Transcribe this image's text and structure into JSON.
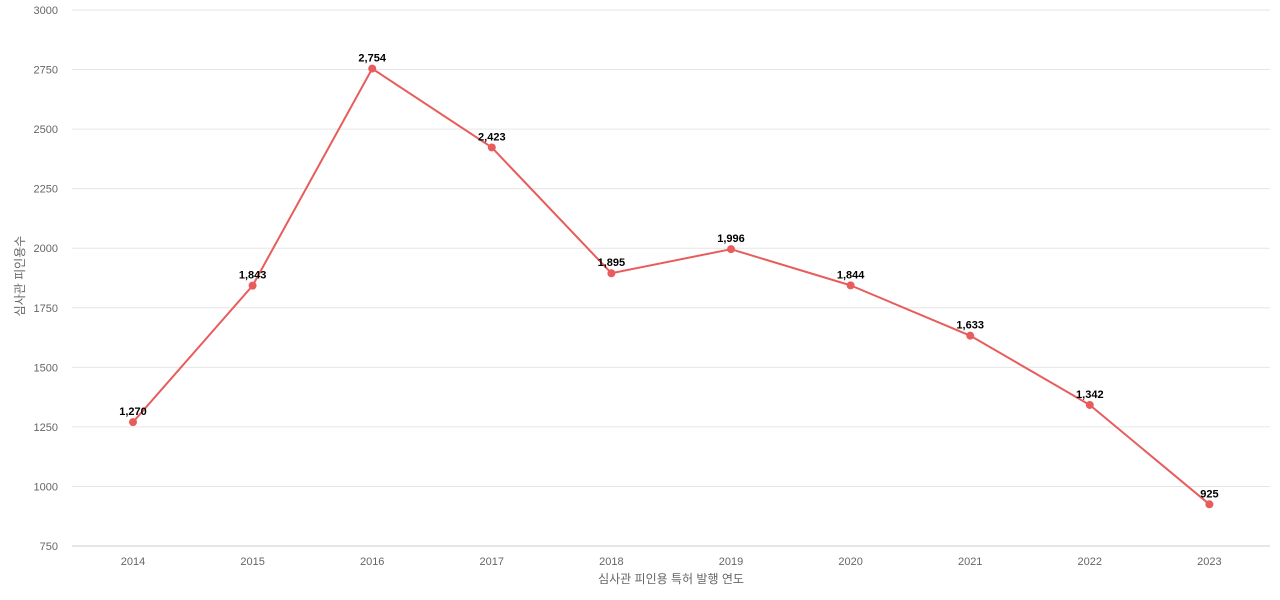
{
  "chart_data": {
    "type": "line",
    "title": "",
    "xlabel": "심사관 피인용 특허 발행 연도",
    "ylabel": "심사관 피인용수",
    "x": [
      "2014",
      "2015",
      "2016",
      "2017",
      "2018",
      "2019",
      "2020",
      "2021",
      "2022",
      "2023"
    ],
    "series": [
      {
        "values": [
          1270,
          1843,
          2754,
          2423,
          1895,
          1996,
          1844,
          1633,
          1342,
          925
        ],
        "labels": [
          "1,270",
          "1,843",
          "2,754",
          "2,423",
          "1,895",
          "1,996",
          "1,844",
          "1,633",
          "1,342",
          "925"
        ],
        "color": "#e85c5c"
      }
    ],
    "ylim": [
      750,
      3000
    ],
    "yticks": [
      "750",
      "1000",
      "1250",
      "1500",
      "1750",
      "2000",
      "2250",
      "2500",
      "2750",
      "3000"
    ],
    "grid": true,
    "legend": "none"
  }
}
